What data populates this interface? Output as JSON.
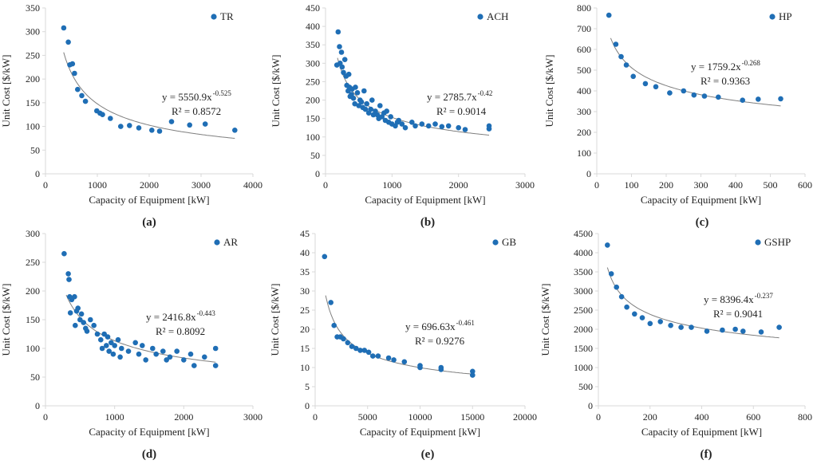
{
  "chart_data": [
    {
      "type": "scatter",
      "panel_label": "(a)",
      "legend": "TR",
      "xlabel": "Capacity of Equipment [kW]",
      "ylabel": "Unit Cost [$/kW]",
      "xlim": [
        0,
        4000
      ],
      "xticks": [
        0,
        1000,
        2000,
        3000,
        4000
      ],
      "ylim": [
        0,
        350
      ],
      "yticks": [
        0,
        50,
        100,
        150,
        200,
        250,
        300,
        350
      ],
      "equation": "y = 5550.9x",
      "exponent": "-0.525",
      "r2": "R² = 0.8572",
      "fit": {
        "a": 5550.9,
        "b": -0.525,
        "from": 350,
        "to": 3650
      },
      "points": [
        [
          352,
          308
        ],
        [
          440,
          278
        ],
        [
          470,
          230
        ],
        [
          520,
          232
        ],
        [
          560,
          212
        ],
        [
          620,
          178
        ],
        [
          700,
          165
        ],
        [
          770,
          153
        ],
        [
          990,
          133
        ],
        [
          1050,
          128
        ],
        [
          1100,
          125
        ],
        [
          1250,
          117
        ],
        [
          1450,
          100
        ],
        [
          1620,
          102
        ],
        [
          1800,
          97
        ],
        [
          2050,
          92
        ],
        [
          2200,
          90
        ],
        [
          2430,
          110
        ],
        [
          2780,
          103
        ],
        [
          3080,
          105
        ],
        [
          3650,
          92
        ]
      ]
    },
    {
      "type": "scatter",
      "panel_label": "(b)",
      "legend": "ACH",
      "xlabel": "Capacity of Equipment [kW]",
      "ylabel": "Unit Cost [$/kW]",
      "xlim": [
        0,
        3000
      ],
      "xticks": [
        0,
        1000,
        2000,
        3000
      ],
      "ylim": [
        0,
        450
      ],
      "yticks": [
        0,
        50,
        100,
        150,
        200,
        250,
        300,
        350,
        400,
        450
      ],
      "equation": "y = 2785.7x",
      "exponent": "-0.42",
      "r2": "R² = 0.9014",
      "fit": {
        "a": 2785.7,
        "b": -0.42,
        "from": 180,
        "to": 2460
      },
      "points": [
        [
          170,
          295
        ],
        [
          190,
          385
        ],
        [
          210,
          345
        ],
        [
          220,
          300
        ],
        [
          240,
          330
        ],
        [
          250,
          290
        ],
        [
          270,
          275
        ],
        [
          290,
          310
        ],
        [
          310,
          265
        ],
        [
          320,
          240
        ],
        [
          340,
          225
        ],
        [
          350,
          270
        ],
        [
          360,
          235
        ],
        [
          370,
          210
        ],
        [
          390,
          215
        ],
        [
          400,
          230
        ],
        [
          420,
          205
        ],
        [
          440,
          190
        ],
        [
          450,
          235
        ],
        [
          480,
          220
        ],
        [
          500,
          185
        ],
        [
          520,
          200
        ],
        [
          540,
          195
        ],
        [
          560,
          180
        ],
        [
          580,
          225
        ],
        [
          600,
          175
        ],
        [
          620,
          190
        ],
        [
          650,
          165
        ],
        [
          680,
          175
        ],
        [
          700,
          200
        ],
        [
          720,
          160
        ],
        [
          750,
          170
        ],
        [
          780,
          160
        ],
        [
          800,
          150
        ],
        [
          820,
          185
        ],
        [
          850,
          155
        ],
        [
          880,
          165
        ],
        [
          900,
          145
        ],
        [
          920,
          170
        ],
        [
          950,
          140
        ],
        [
          980,
          155
        ],
        [
          1000,
          135
        ],
        [
          1050,
          130
        ],
        [
          1080,
          140
        ],
        [
          1100,
          145
        ],
        [
          1150,
          135
        ],
        [
          1200,
          125
        ],
        [
          1300,
          140
        ],
        [
          1350,
          130
        ],
        [
          1450,
          135
        ],
        [
          1550,
          130
        ],
        [
          1650,
          135
        ],
        [
          1750,
          128
        ],
        [
          1850,
          130
        ],
        [
          2000,
          125
        ],
        [
          2100,
          120
        ],
        [
          2460,
          130
        ],
        [
          2460,
          122
        ]
      ]
    },
    {
      "type": "scatter",
      "panel_label": "(c)",
      "legend": "HP",
      "xlabel": "Capacity of Equipment [kW]",
      "ylabel": "Unit Cost [$/kW]",
      "xlim": [
        0,
        600
      ],
      "xticks": [
        0,
        100,
        200,
        300,
        400,
        500,
        600
      ],
      "ylim": [
        0,
        800
      ],
      "yticks": [
        0,
        100,
        200,
        300,
        400,
        500,
        600,
        700,
        800
      ],
      "equation": "y = 1759.2x",
      "exponent": "-0.268",
      "r2": "R² = 0.9363",
      "fit": {
        "a": 1759.2,
        "b": -0.268,
        "from": 40,
        "to": 530
      },
      "points": [
        [
          35,
          765
        ],
        [
          55,
          625
        ],
        [
          70,
          565
        ],
        [
          85,
          525
        ],
        [
          105,
          470
        ],
        [
          140,
          435
        ],
        [
          170,
          420
        ],
        [
          210,
          390
        ],
        [
          250,
          400
        ],
        [
          280,
          380
        ],
        [
          310,
          375
        ],
        [
          350,
          370
        ],
        [
          420,
          355
        ],
        [
          465,
          360
        ],
        [
          530,
          362
        ]
      ]
    },
    {
      "type": "scatter",
      "panel_label": "(d)",
      "legend": "AR",
      "xlabel": "Capacity of Equipment [kW]",
      "ylabel": "Unit Cost [$/kW]",
      "xlim": [
        0,
        3000
      ],
      "xticks": [
        0,
        1000,
        2000,
        3000
      ],
      "ylim": [
        0,
        300
      ],
      "yticks": [
        0,
        50,
        100,
        150,
        200,
        250,
        300
      ],
      "equation": "y = 2416.8x",
      "exponent": "-0.443",
      "r2": "R² = 0.8092",
      "fit": {
        "a": 2416.8,
        "b": -0.443,
        "from": 300,
        "to": 2460
      },
      "points": [
        [
          270,
          265
        ],
        [
          330,
          230
        ],
        [
          340,
          220
        ],
        [
          350,
          190
        ],
        [
          360,
          162
        ],
        [
          380,
          185
        ],
        [
          420,
          190
        ],
        [
          430,
          140
        ],
        [
          450,
          165
        ],
        [
          470,
          170
        ],
        [
          500,
          150
        ],
        [
          520,
          160
        ],
        [
          550,
          145
        ],
        [
          580,
          135
        ],
        [
          600,
          130
        ],
        [
          650,
          150
        ],
        [
          700,
          140
        ],
        [
          750,
          125
        ],
        [
          800,
          115
        ],
        [
          820,
          100
        ],
        [
          850,
          125
        ],
        [
          880,
          105
        ],
        [
          900,
          120
        ],
        [
          920,
          95
        ],
        [
          950,
          110
        ],
        [
          980,
          90
        ],
        [
          1000,
          105
        ],
        [
          1050,
          115
        ],
        [
          1080,
          85
        ],
        [
          1100,
          100
        ],
        [
          1200,
          95
        ],
        [
          1300,
          110
        ],
        [
          1350,
          90
        ],
        [
          1400,
          105
        ],
        [
          1450,
          80
        ],
        [
          1550,
          100
        ],
        [
          1600,
          90
        ],
        [
          1700,
          95
        ],
        [
          1750,
          80
        ],
        [
          1800,
          85
        ],
        [
          1900,
          95
        ],
        [
          2000,
          80
        ],
        [
          2100,
          90
        ],
        [
          2150,
          70
        ],
        [
          2300,
          85
        ],
        [
          2460,
          100
        ],
        [
          2460,
          70
        ]
      ]
    },
    {
      "type": "scatter",
      "panel_label": "(e)",
      "legend": "GB",
      "xlabel": "Capacity of Equipment [kW]",
      "ylabel": "Unit Cost [$/kW]",
      "xlim": [
        0,
        20000
      ],
      "xticks": [
        0,
        5000,
        10000,
        15000,
        20000
      ],
      "ylim": [
        0,
        45
      ],
      "yticks": [
        0,
        5,
        10,
        15,
        20,
        25,
        30,
        35,
        40,
        45
      ],
      "equation": "y = 696.63x",
      "exponent": "-0.461",
      "r2": "R² = 0.9276",
      "fit": {
        "a": 696.63,
        "b": -0.461,
        "from": 1000,
        "to": 15000
      },
      "points": [
        [
          900,
          39
        ],
        [
          1500,
          27
        ],
        [
          1800,
          21
        ],
        [
          2100,
          18
        ],
        [
          2400,
          18
        ],
        [
          2700,
          17.5
        ],
        [
          3100,
          16.5
        ],
        [
          3500,
          15.5
        ],
        [
          3900,
          15
        ],
        [
          4300,
          14.5
        ],
        [
          4700,
          14.5
        ],
        [
          5100,
          14
        ],
        [
          5500,
          13
        ],
        [
          6000,
          13
        ],
        [
          7000,
          12.5
        ],
        [
          7500,
          12
        ],
        [
          8500,
          11.5
        ],
        [
          10000,
          10.5
        ],
        [
          10000,
          10
        ],
        [
          12000,
          10
        ],
        [
          12000,
          9.5
        ],
        [
          15000,
          9
        ],
        [
          15000,
          8
        ]
      ]
    },
    {
      "type": "scatter",
      "panel_label": "(f)",
      "legend": "GSHP",
      "xlabel": "Capacity of Equipment [kW]",
      "ylabel": "Unit Cost [$/kW]",
      "xlim": [
        0,
        800
      ],
      "xticks": [
        0,
        200,
        400,
        600,
        800
      ],
      "ylim": [
        0,
        4500
      ],
      "yticks": [
        0,
        500,
        1000,
        1500,
        2000,
        2500,
        3000,
        3500,
        4000,
        4500
      ],
      "equation": "y = 8396.4x",
      "exponent": "-0.237",
      "r2": "R² = 0.9041",
      "fit": {
        "a": 8396.4,
        "b": -0.237,
        "from": 35,
        "to": 700
      },
      "points": [
        [
          35,
          4200
        ],
        [
          50,
          3450
        ],
        [
          70,
          3100
        ],
        [
          90,
          2850
        ],
        [
          110,
          2580
        ],
        [
          140,
          2400
        ],
        [
          170,
          2300
        ],
        [
          200,
          2150
        ],
        [
          240,
          2200
        ],
        [
          280,
          2100
        ],
        [
          320,
          2050
        ],
        [
          360,
          2050
        ],
        [
          420,
          1950
        ],
        [
          480,
          1980
        ],
        [
          530,
          2000
        ],
        [
          560,
          1950
        ],
        [
          630,
          1930
        ],
        [
          700,
          2050
        ]
      ]
    }
  ]
}
